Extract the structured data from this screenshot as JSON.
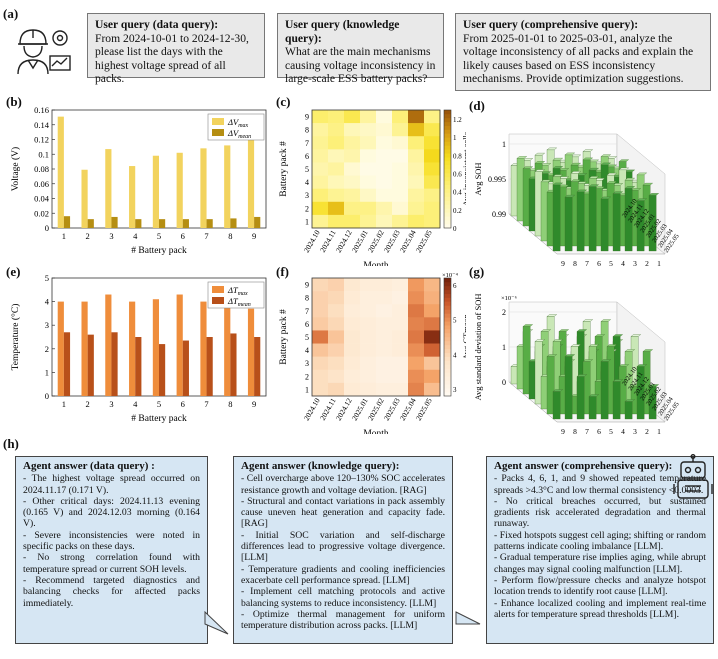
{
  "panel_labels": {
    "a": "(a)",
    "b": "(b)",
    "c": "(c)",
    "d": "(d)",
    "e": "(e)",
    "f": "(f)",
    "g": "(g)",
    "h": "(h)"
  },
  "queries": [
    {
      "title": "User query (data query):",
      "text": "From 2024-10-01 to 2024-12-30, please list the days with the highest voltage spread of all packs."
    },
    {
      "title": "User query (knowledge query):",
      "text": "What are the main mechanisms causing voltage inconsistency in large-scale ESS battery packs?"
    },
    {
      "title": "User query (comprehensive query):",
      "text": "From 2025-01-01 to 2025-03-01, analyze the voltage inconsistency of all packs and explain the likely causes based on ESS inconsistency mechanisms. Provide optimization suggestions."
    }
  ],
  "answers": [
    {
      "title": "Agent answer (data query) :",
      "items": [
        "- The highest voltage spread occurred on 2024.11.17 (0.171 V).",
        "- Other critical days: 2024.11.13 evening (0.165 V) and 2024.12.03 morning (0.164 V).",
        "- Severe inconsistencies were noted in specific packs on these days.",
        "- No strong correlation found with temperature spread or current SOH levels.",
        "- Recommend targeted diagnostics and balancing checks for affected packs immediately."
      ]
    },
    {
      "title": "Agent answer (knowledge query):",
      "items": [
        "- Cell overcharge above 120–130% SOC accelerates resistance growth and voltage deviation. [RAG]",
        "- Structural and contact variations in pack assembly cause uneven heat generation and capacity fade. [RAG]",
        "- Initial SOC variation and self-discharge differences lead to progressive voltage divergence. [LLM]",
        "- Temperature gradients and cooling inefficiencies exacerbate cell performance spread. [LLM]",
        "- Implement cell matching protocols and active balancing systems to reduce inconsistency. [LLM]",
        "- Optimize thermal management for uniform temperature distribution across packs. [LLM]"
      ]
    },
    {
      "title": "Agent answer (comprehensive query):",
      "items": [
        "- Packs 4, 6, 1, and 9 showed repeated temperature spreads >4.3°C and low thermal consistency <0.0003.",
        "- No critical breaches occurred, but sustained gradients risk accelerated degradation and thermal runaway.",
        "- Fixed hotspots suggest cell aging; shifting or random patterns indicate cooling imbalance [LLM].",
        "- Gradual temperature rise implies aging, while abrupt changes may signal cooling malfunction [LLM].",
        "- Perform flow/pressure checks and analyze hotspot location trends to identify root cause [LLM].",
        "- Enhance localized cooling and implement real-time alerts for temperature spread thresholds [LLM]."
      ]
    }
  ],
  "chart_data": [
    {
      "id": "b",
      "type": "bar",
      "categories": [
        "1",
        "2",
        "3",
        "4",
        "5",
        "6",
        "7",
        "8",
        "9"
      ],
      "series": [
        {
          "name": "ΔV_max",
          "values": [
            0.151,
            0.079,
            0.107,
            0.084,
            0.098,
            0.102,
            0.108,
            0.112,
            0.13
          ],
          "color": "#f2d35e"
        },
        {
          "name": "ΔV_mean",
          "values": [
            0.016,
            0.012,
            0.015,
            0.012,
            0.012,
            0.012,
            0.012,
            0.013,
            0.015
          ],
          "color": "#b58e12"
        }
      ],
      "xlabel": "# Battery pack",
      "ylabel": "Voltage (V)",
      "ylim": [
        0,
        0.16
      ],
      "yticks": [
        "0",
        "0.02",
        "0.04",
        "0.06",
        "0.08",
        "0.1",
        "0.12",
        "0.14",
        "0.16"
      ],
      "legend": "top-right",
      "grid": false
    },
    {
      "id": "e",
      "type": "bar",
      "categories": [
        "1",
        "2",
        "3",
        "4",
        "5",
        "6",
        "7",
        "8",
        "9"
      ],
      "series": [
        {
          "name": "ΔT_max",
          "values": [
            4.0,
            4.0,
            4.3,
            4.0,
            4.1,
            4.3,
            4.0,
            4.0,
            3.7
          ],
          "color": "#ef8d3b"
        },
        {
          "name": "ΔT_mean",
          "values": [
            2.7,
            2.6,
            2.7,
            2.5,
            2.2,
            2.35,
            2.5,
            2.65,
            2.5
          ],
          "color": "#b8501a"
        }
      ],
      "xlabel": "# Battery pack",
      "ylabel": "Temperature (°C)",
      "ylim": [
        0,
        5
      ],
      "yticks": [
        "0",
        "1",
        "2",
        "3",
        "4",
        "5"
      ],
      "legend": "top-right",
      "grid": false
    },
    {
      "id": "c",
      "type": "heatmap",
      "xlabel": "Month",
      "ylabel": "Battery pack #",
      "x": [
        "2024.10",
        "2024.11",
        "2024.12",
        "2025.01",
        "2025.02",
        "2025.03",
        "2025.04",
        "2025.05"
      ],
      "y": [
        "9",
        "8",
        "7",
        "6",
        "5",
        "4",
        "3",
        "2",
        "1"
      ],
      "values": [
        [
          0.5,
          0.45,
          0.6,
          0.3,
          0.05,
          0.45,
          1.2,
          0.4
        ],
        [
          0.3,
          0.4,
          0.2,
          0.15,
          0.1,
          0.35,
          0.9,
          0.6
        ],
        [
          0.35,
          0.45,
          0.3,
          0.2,
          0.05,
          0.1,
          0.45,
          0.7
        ],
        [
          0.3,
          0.2,
          0.25,
          0.05,
          0.02,
          0.02,
          0.3,
          0.8
        ],
        [
          0.25,
          0.3,
          0.1,
          0.02,
          0.02,
          0.05,
          0.25,
          0.7
        ],
        [
          0.3,
          0.2,
          0.15,
          0.05,
          0.02,
          0.05,
          0.2,
          0.6
        ],
        [
          0.45,
          0.35,
          0.3,
          0.15,
          0.05,
          0.05,
          0.3,
          0.4
        ],
        [
          0.7,
          0.9,
          0.4,
          0.4,
          0.25,
          0.1,
          0.35,
          0.45
        ],
        [
          0.35,
          0.5,
          0.5,
          0.35,
          0.2,
          0.35,
          0.5,
          0.45
        ]
      ],
      "colorbar": {
        "label": "Avg inconsistent cells",
        "ticks": [
          "0",
          "0.2",
          "0.4",
          "0.6",
          "0.8",
          "1",
          "1.2"
        ]
      }
    },
    {
      "id": "f",
      "type": "heatmap",
      "xlabel": "Month",
      "ylabel": "Battery pack #",
      "x": [
        "2024.10",
        "2024.11",
        "2024.12",
        "2025.01",
        "2025.02",
        "2025.03",
        "2025.04",
        "2025.05"
      ],
      "y": [
        "9",
        "8",
        "7",
        "6",
        "5",
        "4",
        "3",
        "2",
        "1"
      ],
      "values": [
        [
          4.0,
          4.1,
          3.6,
          3.4,
          3.4,
          3.3,
          4.9,
          4.5
        ],
        [
          4.1,
          4.0,
          3.5,
          3.3,
          3.3,
          3.2,
          5.0,
          4.6
        ],
        [
          4.1,
          3.9,
          3.4,
          3.3,
          3.2,
          3.3,
          5.2,
          4.8
        ],
        [
          4.2,
          4.0,
          3.5,
          3.4,
          3.3,
          3.3,
          5.1,
          5.2
        ],
        [
          5.2,
          4.3,
          3.6,
          3.4,
          3.3,
          3.4,
          5.2,
          6.0
        ],
        [
          4.3,
          4.1,
          3.6,
          3.4,
          3.3,
          3.4,
          5.0,
          5.4
        ],
        [
          4.0,
          3.9,
          3.5,
          3.3,
          3.2,
          3.2,
          4.8,
          4.3
        ],
        [
          3.9,
          3.8,
          3.4,
          3.3,
          3.2,
          3.2,
          5.0,
          4.8
        ],
        [
          3.9,
          4.0,
          3.5,
          3.4,
          3.3,
          3.3,
          5.1,
          4.4
        ]
      ],
      "colorbar": {
        "label": "Avg CTmean",
        "ticks": [
          "3",
          "4",
          "5",
          "6"
        ],
        "exponent": "×10⁻⁴"
      }
    },
    {
      "id": "d",
      "type": "bar3d",
      "zlabel": "Avg SOH",
      "xlabel": "# Battery pack",
      "packs": [
        "9",
        "8",
        "7",
        "6",
        "5",
        "4",
        "3",
        "2",
        "1"
      ],
      "months": [
        "2024.10",
        "2024.11",
        "2024.12",
        "2025.01",
        "2025.02",
        "2025.03",
        "2025.04",
        "2025.05"
      ],
      "zticks": [
        "0.99",
        "0.995",
        "1"
      ]
    },
    {
      "id": "g",
      "type": "bar3d",
      "zlabel": "Avg standard deviation of SOH",
      "xlabel": "# Battery pack",
      "packs": [
        "9",
        "8",
        "7",
        "6",
        "5",
        "4",
        "3",
        "2",
        "1"
      ],
      "months": [
        "2024.10",
        "2024.11",
        "2024.12",
        "2025.01",
        "2025.02",
        "2025.03",
        "2025.04",
        "2025.05"
      ],
      "zticks": [
        "0",
        "1",
        "2"
      ],
      "exponent": "×10⁻⁶"
    }
  ]
}
